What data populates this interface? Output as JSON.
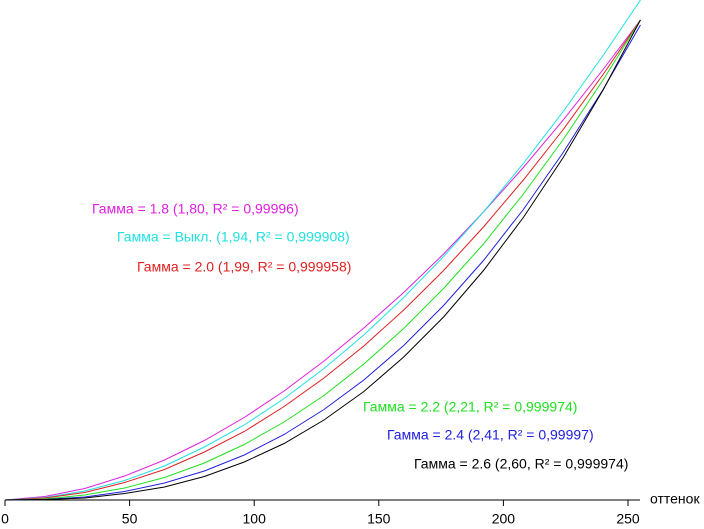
{
  "chart_data": {
    "type": "line",
    "xlabel": "оттенок",
    "x": [
      0,
      16,
      32,
      48,
      64,
      80,
      96,
      112,
      128,
      144,
      160,
      176,
      192,
      208,
      224,
      240,
      255
    ],
    "xlim": [
      0,
      250
    ],
    "xticks": [
      0,
      50,
      100,
      150,
      200,
      250
    ],
    "ylim": [
      0,
      100
    ],
    "series": [
      {
        "name": "Гамма = 1.8 (1,80, R² = 0,99996)",
        "color": "#e020e0",
        "values": [
          0,
          0.7,
          2.3,
          4.8,
          8.0,
          11.9,
          16.5,
          21.8,
          27.8,
          34.4,
          41.5,
          49.2,
          57.6,
          66.5,
          76.0,
          86.1,
          96
        ]
      },
      {
        "name": "Гамма = Выкл. (1,94, R² = 0,999908)",
        "color": "#20e0e0",
        "values": [
          0,
          0.5,
          1.8,
          3.9,
          6.8,
          10.6,
          15.0,
          20.3,
          26.3,
          33.0,
          40.5,
          48.7,
          57.6,
          67.3,
          77.7,
          88.9,
          100
        ]
      },
      {
        "name": "Гамма = 2.0 (1,99, R² = 0,999958)",
        "color": "#e02020",
        "values": [
          0,
          0.4,
          1.5,
          3.5,
          6.1,
          9.6,
          13.7,
          18.7,
          24.4,
          30.8,
          38.0,
          45.9,
          54.6,
          64.0,
          74.1,
          85.1,
          96
        ]
      },
      {
        "name": "Гамма = 2.2 (2,21, R² = 0,999974)",
        "color": "#20e020",
        "values": [
          0,
          0.2,
          1.0,
          2.4,
          4.5,
          7.4,
          11.1,
          15.6,
          20.9,
          27.2,
          34.3,
          42.3,
          51.2,
          61.2,
          72.1,
          84.0,
          96
        ]
      },
      {
        "name": "Гамма = 2.4 (2,41, R² = 0,99997)",
        "color": "#2020e0",
        "values": [
          0,
          0.1,
          0.6,
          1.7,
          3.4,
          5.8,
          9.0,
          13.1,
          18.1,
          24.0,
          30.9,
          38.9,
          47.9,
          58.1,
          69.5,
          82.1,
          95
        ]
      },
      {
        "name": "Гамма = 2.6 (2,60, R² = 0,999974)",
        "color": "#000000",
        "values": [
          0,
          0.1,
          0.4,
          1.3,
          2.6,
          4.7,
          7.6,
          11.3,
          16.0,
          21.7,
          28.6,
          36.6,
          45.9,
          56.5,
          68.5,
          82.0,
          96
        ]
      }
    ]
  }
}
